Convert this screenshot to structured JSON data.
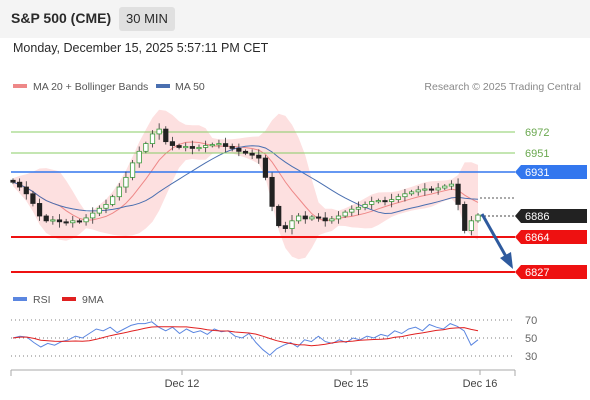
{
  "header": {
    "symbol": "S&P 500 (CME)",
    "interval": "30 MIN"
  },
  "datetime": "Monday, December 15, 2025 5:57:11 PM CET",
  "legend": {
    "ma20": "MA 20 + Bollinger Bands",
    "ma50": "MA 50",
    "credit": "Research © 2025 Trading Central",
    "rsi": "RSI",
    "rsi_ma": "9MA"
  },
  "colors": {
    "candle": "#cc3333",
    "band_fill": "#fde0e0",
    "ma20": "#ee8888",
    "ma50": "#4a6fb0",
    "green_level": "#88cc66",
    "blue_level": "#3377ee",
    "red_level": "#ee1111",
    "current_tag": "#222222",
    "rsi": "#5b86e0",
    "rsi_ma": "#e02020",
    "arrow": "#2e5a9e"
  },
  "levels": [
    {
      "value": "6972",
      "type": "resistance",
      "color": "green"
    },
    {
      "value": "6951",
      "type": "resistance",
      "color": "green"
    },
    {
      "value": "6931",
      "type": "resistance",
      "color": "blue"
    },
    {
      "value": "6886",
      "type": "current",
      "color": "black"
    },
    {
      "value": "6864",
      "type": "support",
      "color": "red"
    },
    {
      "value": "6827",
      "type": "support",
      "color": "red"
    }
  ],
  "rsi_ticks": [
    "70",
    "50",
    "30"
  ],
  "x_labels": [
    "Dec 12",
    "Dec 15",
    "Dec 16"
  ],
  "chart_data": {
    "type": "candlestick",
    "price_path": [
      6920,
      6915,
      6908,
      6898,
      6885,
      6880,
      6881,
      6879,
      6878,
      6880,
      6879,
      6883,
      6888,
      6893,
      6897,
      6905,
      6915,
      6925,
      6940,
      6952,
      6960,
      6970,
      6975,
      6962,
      6958,
      6956,
      6957,
      6955,
      6956,
      6958,
      6959,
      6960,
      6957,
      6955,
      6952,
      6950,
      6948,
      6945,
      6925,
      6895,
      6875,
      6872,
      6880,
      6885,
      6882,
      6884,
      6883,
      6880,
      6882,
      6885,
      6889,
      6892,
      6894,
      6897,
      6900,
      6901,
      6900,
      6902,
      6905,
      6908,
      6910,
      6912,
      6913,
      6912,
      6914,
      6916,
      6918,
      6897,
      6870,
      6880,
      6886
    ],
    "rsi": [
      50,
      52,
      51,
      45,
      40,
      44,
      42,
      46,
      48,
      52,
      50,
      55,
      60,
      58,
      62,
      56,
      60,
      64,
      66,
      66,
      68,
      62,
      58,
      62,
      55,
      60,
      56,
      58,
      54,
      60,
      57,
      58,
      52,
      50,
      55,
      45,
      37,
      31,
      38,
      42,
      45,
      40,
      48,
      46,
      52,
      46,
      44,
      48,
      45,
      50,
      48,
      52,
      50,
      54,
      52,
      58,
      55,
      60,
      62,
      58,
      65,
      62,
      60,
      66,
      63,
      58,
      42,
      48
    ],
    "rsi_ylim": [
      0,
      100
    ],
    "y_levels": [
      6972,
      6951,
      6931,
      6886,
      6864,
      6827
    ]
  }
}
